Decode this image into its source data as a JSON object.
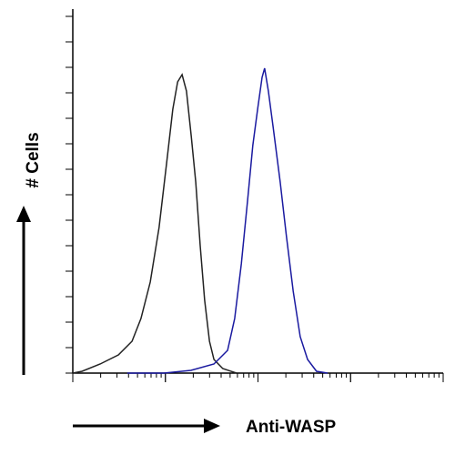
{
  "chart_data": {
    "type": "line",
    "x_label": "Anti-WASP",
    "y_label": "# Cells",
    "xlim": [
      0,
      100
    ],
    "ylim": [
      0,
      100
    ],
    "series": [
      {
        "color": "#222222",
        "x": [
          0,
          2.5,
          7.4,
          12.3,
          16,
          18.4,
          20.9,
          23.3,
          25.3,
          27,
          28.3,
          29.5,
          30.7,
          32,
          33.2,
          34.4,
          35.6,
          36.9,
          38.1,
          40.5,
          44.2
        ],
        "values": [
          0,
          0.5,
          2.5,
          5,
          8.75,
          15,
          25,
          40,
          57.5,
          72.5,
          80,
          82,
          77.5,
          65,
          52.5,
          35,
          20,
          8.75,
          3.75,
          1.25,
          0
        ]
      },
      {
        "color": "#1a1aa0",
        "x": [
          14.7,
          24.6,
          31.9,
          38.1,
          41.8,
          43.7,
          45.5,
          47.2,
          48.6,
          49.9,
          51.1,
          51.8,
          52.8,
          54.1,
          56,
          57.7,
          59.5,
          61.4,
          63.4,
          65.8,
          68.8
        ],
        "values": [
          0,
          0,
          0.75,
          2.5,
          6.25,
          15,
          30,
          47.5,
          62.5,
          72.5,
          81.25,
          83.75,
          77.5,
          67.5,
          52.5,
          37.5,
          22.5,
          10,
          3.75,
          0.5,
          0
        ]
      }
    ]
  }
}
